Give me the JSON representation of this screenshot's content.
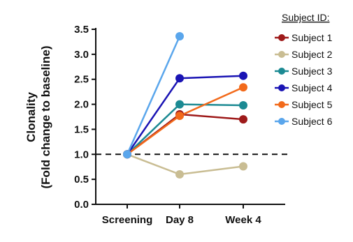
{
  "chart_data": {
    "type": "line",
    "title": "",
    "xlabel": "",
    "ylabel_lines": [
      "Clonality",
      "(Fold change to baseline)"
    ],
    "categories": [
      "Screening",
      "Day 8",
      "Week 4"
    ],
    "ylim": [
      0,
      3.5
    ],
    "yticks": [
      "0.0",
      "0.5",
      "1.0",
      "1.5",
      "2.0",
      "2.5",
      "3.0",
      "3.5"
    ],
    "reference_line": {
      "y": 1.0,
      "style": "dashed"
    },
    "legend_title": "Subject ID:",
    "legend_position": "top-right",
    "grid": false,
    "series": [
      {
        "name": "Subject 1",
        "color": "#9e1a1a",
        "values": [
          1.0,
          1.8,
          1.7
        ]
      },
      {
        "name": "Subject 2",
        "color": "#c9bd93",
        "values": [
          1.0,
          0.6,
          0.76
        ]
      },
      {
        "name": "Subject 3",
        "color": "#1c8a93",
        "values": [
          1.0,
          2.0,
          1.98
        ]
      },
      {
        "name": "Subject 4",
        "color": "#1a14b4",
        "values": [
          1.0,
          2.52,
          2.57
        ]
      },
      {
        "name": "Subject 5",
        "color": "#f26a1b",
        "values": [
          1.0,
          1.77,
          2.34
        ]
      },
      {
        "name": "Subject 6",
        "color": "#5aa6ec",
        "values": [
          1.0,
          3.36,
          null
        ]
      }
    ]
  }
}
